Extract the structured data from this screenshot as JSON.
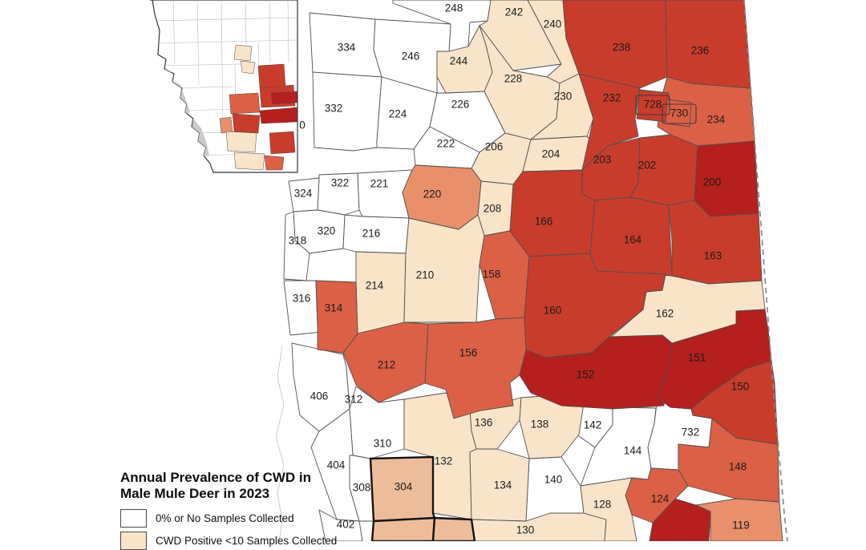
{
  "legend": {
    "title_line1": "Annual Prevalence of CWD in",
    "title_line2": "Male Mule Deer in 2023",
    "items": [
      {
        "label": "0% or No Samples Collected",
        "tier": "none"
      },
      {
        "label": "CWD Positive <10 Samples Collected",
        "tier": "lt10"
      }
    ]
  },
  "map": {
    "tier_colors": {
      "none": "#ffffff",
      "lt10": "#f9e4c9",
      "t3": "#edbd9b",
      "t4": "#e8906c",
      "t5": "#dc6045",
      "t6": "#c93c2c",
      "t7": "#b51f1e"
    },
    "park_color": "#c9c9c9",
    "border_color": "#4a4a4a",
    "regions": [
      {
        "id": "248",
        "tier": "none"
      },
      {
        "id": "334",
        "tier": "none"
      },
      {
        "id": "246",
        "tier": "none"
      },
      {
        "id": "332",
        "tier": "none"
      },
      {
        "id": "224",
        "tier": "none"
      },
      {
        "id": "226",
        "tier": "none"
      },
      {
        "id": "222",
        "tier": "none"
      },
      {
        "id": "322",
        "tier": "none"
      },
      {
        "id": "221",
        "tier": "none"
      },
      {
        "id": "324",
        "tier": "none"
      },
      {
        "id": "320",
        "tier": "none"
      },
      {
        "id": "318",
        "tier": "none"
      },
      {
        "id": "216",
        "tier": "none"
      },
      {
        "id": "316",
        "tier": "none"
      },
      {
        "id": "406",
        "tier": "none"
      },
      {
        "id": "312",
        "tier": "none"
      },
      {
        "id": "310",
        "tier": "none"
      },
      {
        "id": "404",
        "tier": "none"
      },
      {
        "id": "308",
        "tier": "none"
      },
      {
        "id": "402",
        "tier": "none"
      },
      {
        "id": "142",
        "tier": "none"
      },
      {
        "id": "144",
        "tier": "none"
      },
      {
        "id": "732",
        "tier": "none"
      },
      {
        "id": "140",
        "tier": "none"
      },
      {
        "id": "242",
        "tier": "lt10"
      },
      {
        "id": "240",
        "tier": "lt10"
      },
      {
        "id": "244",
        "tier": "lt10"
      },
      {
        "id": "228",
        "tier": "lt10"
      },
      {
        "id": "230",
        "tier": "lt10"
      },
      {
        "id": "206",
        "tier": "lt10"
      },
      {
        "id": "204",
        "tier": "lt10"
      },
      {
        "id": "208",
        "tier": "lt10"
      },
      {
        "id": "214",
        "tier": "lt10"
      },
      {
        "id": "210",
        "tier": "lt10"
      },
      {
        "id": "162",
        "tier": "lt10"
      },
      {
        "id": "136",
        "tier": "lt10"
      },
      {
        "id": "138",
        "tier": "lt10"
      },
      {
        "id": "132",
        "tier": "lt10"
      },
      {
        "id": "134",
        "tier": "lt10"
      },
      {
        "id": "130",
        "tier": "lt10"
      },
      {
        "id": "128",
        "tier": "lt10"
      },
      {
        "id": "304",
        "tier": "t3",
        "thick": true
      },
      {
        "id": "_s2",
        "tier": "t3",
        "thick": true,
        "label": ""
      },
      {
        "id": "_s3",
        "tier": "t3",
        "thick": true,
        "label": ""
      },
      {
        "id": "220",
        "tier": "t4"
      },
      {
        "id": "119",
        "tier": "t4"
      },
      {
        "id": "234",
        "tier": "t5"
      },
      {
        "id": "158",
        "tier": "t5"
      },
      {
        "id": "314",
        "tier": "t5"
      },
      {
        "id": "212",
        "tier": "t5"
      },
      {
        "id": "156",
        "tier": "t5"
      },
      {
        "id": "148",
        "tier": "t5"
      },
      {
        "id": "124",
        "tier": "t5"
      },
      {
        "id": "238",
        "tier": "t6"
      },
      {
        "id": "236",
        "tier": "t6"
      },
      {
        "id": "232",
        "tier": "t6"
      },
      {
        "id": "203",
        "tier": "t6"
      },
      {
        "id": "202",
        "tier": "t6"
      },
      {
        "id": "166",
        "tier": "t6"
      },
      {
        "id": "164",
        "tier": "t6"
      },
      {
        "id": "163",
        "tier": "t6"
      },
      {
        "id": "160",
        "tier": "t6"
      },
      {
        "id": "150",
        "tier": "t6"
      },
      {
        "id": "200",
        "tier": "t7"
      },
      {
        "id": "152",
        "tier": "t7"
      },
      {
        "id": "151",
        "tier": "t7"
      },
      {
        "id": "_s4",
        "tier": "t7",
        "label": ""
      },
      {
        "id": "728",
        "tier": "t6",
        "boxed": true
      },
      {
        "id": "730",
        "tier": "t5",
        "boxed": true
      },
      {
        "id": "0",
        "tier": "none",
        "label_only": true
      }
    ]
  }
}
